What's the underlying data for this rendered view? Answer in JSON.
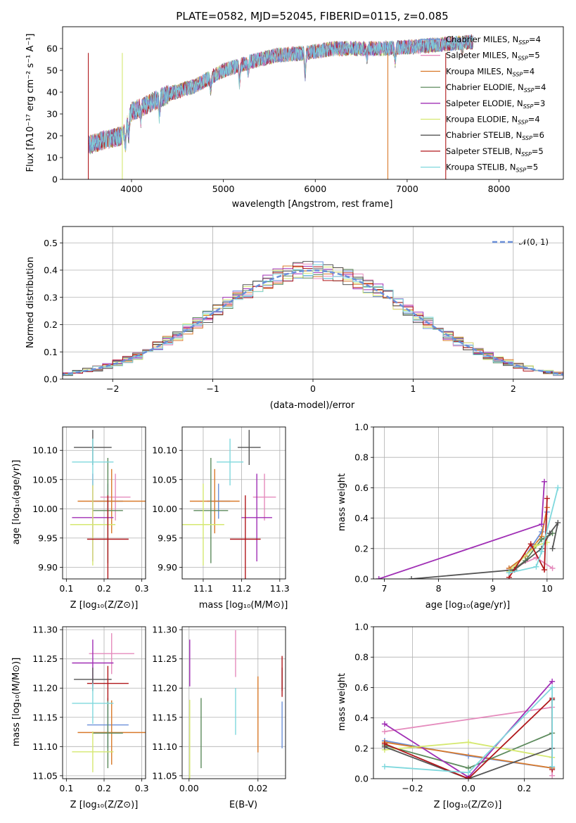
{
  "colors": {
    "series": [
      "#6a8fd9",
      "#e58bbd",
      "#d97a2b",
      "#5c8a5c",
      "#a02fb5",
      "#d5e870",
      "#555555",
      "#b0171b",
      "#7fd8dd"
    ]
  },
  "legend": [
    {
      "name": "Chabrier MILES",
      "nssp": "4"
    },
    {
      "name": "Salpeter MILES",
      "nssp": "5"
    },
    {
      "name": "Kroupa MILES",
      "nssp": "4"
    },
    {
      "name": "Chabrier ELODIE",
      "nssp": "4"
    },
    {
      "name": "Salpeter ELODIE",
      "nssp": "3"
    },
    {
      "name": "Kroupa ELODIE",
      "nssp": "4"
    },
    {
      "name": "Chabrier STELIB",
      "nssp": "6"
    },
    {
      "name": "Salpeter STELIB",
      "nssp": "5"
    },
    {
      "name": "Kroupa STELIB",
      "nssp": "5"
    }
  ],
  "chart_data": [
    {
      "type": "line",
      "id": "spectrum",
      "title": "PLATE=0582, MJD=52045, FIBERID=0115, z=0.085",
      "xlabel": "wavelength [Angstrom, rest frame]",
      "ylabel": "Flux [fλ10⁻¹⁷ erg cm⁻² s⁻¹ A⁻¹]",
      "xlim": [
        3250,
        8700
      ],
      "ylim": [
        0,
        70
      ],
      "xticks": [
        4000,
        5000,
        6000,
        7000,
        8000
      ],
      "yticks": [
        0,
        10,
        20,
        30,
        40,
        50,
        60
      ],
      "continuum": [
        [
          3550,
          16
        ],
        [
          3700,
          18
        ],
        [
          3900,
          20
        ],
        [
          4000,
          31
        ],
        [
          4200,
          35
        ],
        [
          4400,
          39
        ],
        [
          4700,
          43
        ],
        [
          5000,
          50
        ],
        [
          5300,
          54
        ],
        [
          5600,
          57
        ],
        [
          5900,
          58
        ],
        [
          6200,
          60
        ],
        [
          6500,
          60
        ],
        [
          6800,
          60
        ],
        [
          7100,
          61
        ],
        [
          7400,
          62
        ],
        [
          7700,
          63
        ]
      ],
      "absorption_features": [
        [
          3934,
          -8
        ],
        [
          3969,
          -7
        ],
        [
          4102,
          -5
        ],
        [
          4304,
          -8
        ],
        [
          4861,
          -5
        ],
        [
          5175,
          -8
        ],
        [
          5270,
          -4
        ],
        [
          5890,
          -10
        ],
        [
          6563,
          -4
        ],
        [
          6870,
          -6
        ],
        [
          7600,
          -4
        ]
      ],
      "cut_lines": [
        {
          "series": 7,
          "x": 3530
        },
        {
          "series": 5,
          "x": 3900
        },
        {
          "series": 2,
          "x": 6790
        },
        {
          "series": 7,
          "x": 7420
        }
      ],
      "series": [
        "Chabrier MILES",
        "Salpeter MILES",
        "Kroupa MILES",
        "Chabrier ELODIE",
        "Salpeter ELODIE",
        "Kroupa ELODIE",
        "Chabrier STELIB",
        "Salpeter STELIB",
        "Kroupa STELIB"
      ]
    },
    {
      "type": "line",
      "id": "residuals",
      "xlabel": "(data-model)/error",
      "ylabel": "Normed distribution",
      "xlim": [
        -2.5,
        2.5
      ],
      "ylim": [
        0,
        0.56
      ],
      "xticks": [
        -2,
        -1,
        0,
        1,
        2
      ],
      "xtick_labels": [
        "−2",
        "−1",
        "0",
        "1",
        "2"
      ],
      "yticks": [
        0.0,
        0.1,
        0.2,
        0.3,
        0.4,
        0.5
      ],
      "ytick_labels": [
        "0.0",
        "0.1",
        "0.2",
        "0.3",
        "0.4",
        "0.5"
      ],
      "bin_width": 0.1,
      "reference_curve": "𝒩(0, 1)",
      "series_histograms": "step histograms of (data-model)/error per model, scattered around a normal curve"
    },
    {
      "type": "scatter",
      "id": "age-vs-Z",
      "xlabel": "Z [log₁₀(Z/Z⊙)]",
      "ylabel": "age  [log₁₀(age/yr)]",
      "xlim": [
        0.09,
        0.31
      ],
      "ylim": [
        9.88,
        10.14
      ],
      "xticks": [
        0.1,
        0.2,
        0.3
      ],
      "xtick_labels": [
        "0.1",
        "0.2",
        "0.3"
      ],
      "yticks": [
        9.9,
        9.95,
        10.0,
        10.05,
        10.1
      ],
      "ytick_labels": [
        "9.90",
        "9.95",
        "10.00",
        "10.05",
        "10.10"
      ],
      "points": [
        {
          "series": 0,
          "x": 0.21,
          "y": 10.013,
          "xerr": 0.04,
          "yerr": 0.03
        },
        {
          "series": 1,
          "x": 0.23,
          "y": 10.02,
          "xerr": 0.04,
          "yerr": 0.04
        },
        {
          "series": 2,
          "x": 0.22,
          "y": 10.013,
          "xerr": 0.09,
          "yerr": 0.055
        },
        {
          "series": 3,
          "x": 0.21,
          "y": 9.997,
          "xerr": 0.04,
          "yerr": 0.09
        },
        {
          "series": 4,
          "x": 0.17,
          "y": 9.985,
          "xerr": 0.055,
          "yerr": 0.075
        },
        {
          "series": 5,
          "x": 0.17,
          "y": 9.973,
          "xerr": 0.06,
          "yerr": 0.07
        },
        {
          "series": 6,
          "x": 0.17,
          "y": 10.105,
          "xerr": 0.05,
          "yerr": 0.03
        },
        {
          "series": 7,
          "x": 0.21,
          "y": 9.948,
          "xerr": 0.055,
          "yerr": 0.075
        },
        {
          "series": 8,
          "x": 0.17,
          "y": 10.08,
          "xerr": 0.055,
          "yerr": 0.04
        }
      ]
    },
    {
      "type": "scatter",
      "id": "age-vs-mass",
      "xlabel": "mass [log₁₀(M/M⊙)]",
      "ylabel": "",
      "xlim": [
        11.045,
        11.315
      ],
      "ylim": [
        9.88,
        10.14
      ],
      "xticks": [
        11.1,
        11.2,
        11.3
      ],
      "xtick_labels": [
        "11.1",
        "11.2",
        "11.3"
      ],
      "yticks": [
        9.9,
        9.95,
        10.0,
        10.05,
        10.1
      ],
      "ytick_labels": [
        "9.90",
        "9.95",
        "10.00",
        "10.05",
        "10.10"
      ],
      "points": [
        {
          "series": 0,
          "x": 11.14,
          "y": 10.013,
          "xerr": 0.03,
          "yerr": 0.03
        },
        {
          "series": 1,
          "x": 11.26,
          "y": 10.02,
          "xerr": 0.03,
          "yerr": 0.04
        },
        {
          "series": 2,
          "x": 11.13,
          "y": 10.013,
          "xerr": 0.065,
          "yerr": 0.055
        },
        {
          "series": 3,
          "x": 11.12,
          "y": 9.997,
          "xerr": 0.045,
          "yerr": 0.09
        },
        {
          "series": 4,
          "x": 11.24,
          "y": 9.985,
          "xerr": 0.04,
          "yerr": 0.075
        },
        {
          "series": 5,
          "x": 11.1,
          "y": 9.973,
          "xerr": 0.055,
          "yerr": 0.07
        },
        {
          "series": 6,
          "x": 11.22,
          "y": 10.105,
          "xerr": 0.03,
          "yerr": 0.03
        },
        {
          "series": 7,
          "x": 11.21,
          "y": 9.948,
          "xerr": 0.04,
          "yerr": 0.075
        },
        {
          "series": 8,
          "x": 11.17,
          "y": 10.08,
          "xerr": 0.035,
          "yerr": 0.04
        }
      ]
    },
    {
      "type": "line",
      "id": "weight-vs-age",
      "xlabel": "age  [log₁₀(age/yr)]",
      "ylabel": "mass weight",
      "xlim": [
        6.8,
        10.3
      ],
      "ylim": [
        0.0,
        1.0
      ],
      "xticks": [
        7,
        8,
        9,
        10
      ],
      "xtick_labels": [
        "7",
        "8",
        "9",
        "10"
      ],
      "yticks": [
        0.0,
        0.2,
        0.4,
        0.6,
        0.8,
        1.0
      ],
      "ytick_labels": [
        "0.0",
        "0.2",
        "0.4",
        "0.6",
        "0.8",
        "1.0"
      ],
      "series": [
        {
          "series": 0,
          "points": [
            [
              9.3,
              0.07
            ],
            [
              9.6,
              0.15
            ],
            [
              9.9,
              0.31
            ],
            [
              10.0,
              0.44
            ]
          ]
        },
        {
          "series": 1,
          "points": [
            [
              9.3,
              0.06
            ],
            [
              9.8,
              0.14
            ],
            [
              10.1,
              0.07
            ]
          ]
        },
        {
          "series": 2,
          "points": [
            [
              9.3,
              0.07
            ],
            [
              9.6,
              0.15
            ],
            [
              9.9,
              0.28
            ],
            [
              10.0,
              0.47
            ]
          ]
        },
        {
          "series": 3,
          "points": [
            [
              9.3,
              0.04
            ],
            [
              9.6,
              0.12
            ],
            [
              9.9,
              0.26
            ],
            [
              10.1,
              0.3
            ]
          ]
        },
        {
          "series": 4,
          "points": [
            [
              6.9,
              0.0
            ],
            [
              9.9,
              0.36
            ],
            [
              9.95,
              0.64
            ]
          ]
        },
        {
          "series": 5,
          "points": [
            [
              9.3,
              0.05
            ],
            [
              9.8,
              0.22
            ],
            [
              10.0,
              0.24
            ]
          ]
        },
        {
          "series": 6,
          "points": [
            [
              7.5,
              0.0
            ],
            [
              9.4,
              0.06
            ],
            [
              9.9,
              0.2
            ],
            [
              10.05,
              0.3
            ],
            [
              10.2,
              0.37
            ],
            [
              10.1,
              0.2
            ]
          ]
        },
        {
          "series": 7,
          "points": [
            [
              9.3,
              0.01
            ],
            [
              9.7,
              0.23
            ],
            [
              9.95,
              0.06
            ],
            [
              10.0,
              0.53
            ]
          ]
        },
        {
          "series": 8,
          "points": [
            [
              9.3,
              0.04
            ],
            [
              9.8,
              0.08
            ],
            [
              9.9,
              0.18
            ],
            [
              10.2,
              0.6
            ]
          ]
        }
      ]
    },
    {
      "type": "scatter",
      "id": "mass-vs-Z",
      "xlabel": "Z [log₁₀(Z/Z⊙)]",
      "ylabel": "mass [log₁₀(M/M⊙)]",
      "xlim": [
        0.09,
        0.31
      ],
      "ylim": [
        11.045,
        11.305
      ],
      "xticks": [
        0.1,
        0.2,
        0.3
      ],
      "xtick_labels": [
        "0.1",
        "0.2",
        "0.3"
      ],
      "yticks": [
        11.05,
        11.1,
        11.15,
        11.2,
        11.25,
        11.3
      ],
      "ytick_labels": [
        "11.05",
        "11.10",
        "11.15",
        "11.20",
        "11.25",
        "11.30"
      ],
      "points": [
        {
          "series": 0,
          "x": 0.21,
          "y": 11.137,
          "xerr": 0.055,
          "yerr": 0.04
        },
        {
          "series": 1,
          "x": 0.22,
          "y": 11.259,
          "xerr": 0.06,
          "yerr": 0.035
        },
        {
          "series": 2,
          "x": 0.22,
          "y": 11.124,
          "xerr": 0.09,
          "yerr": 0.055
        },
        {
          "series": 3,
          "x": 0.21,
          "y": 11.123,
          "xerr": 0.04,
          "yerr": 0.06
        },
        {
          "series": 4,
          "x": 0.17,
          "y": 11.243,
          "xerr": 0.055,
          "yerr": 0.04
        },
        {
          "series": 5,
          "x": 0.17,
          "y": 11.091,
          "xerr": 0.055,
          "yerr": 0.035
        },
        {
          "series": 6,
          "x": 0.17,
          "y": 11.215,
          "xerr": 0.05,
          "yerr": 0.02
        },
        {
          "series": 7,
          "x": 0.21,
          "y": 11.208,
          "xerr": 0.055,
          "yerr": 0.03
        },
        {
          "series": 8,
          "x": 0.17,
          "y": 11.174,
          "xerr": 0.055,
          "yerr": 0.035
        }
      ]
    },
    {
      "type": "scatter",
      "id": "mass-vs-ebv",
      "xlabel": "E(B-V)",
      "ylabel": "",
      "xlim": [
        -0.002,
        0.028
      ],
      "ylim": [
        11.045,
        11.305
      ],
      "xticks": [
        0.0,
        0.02
      ],
      "xtick_labels": [
        "0.00",
        "0.02"
      ],
      "yticks": [
        11.05,
        11.1,
        11.15,
        11.2,
        11.25,
        11.3
      ],
      "ytick_labels": [
        "11.05",
        "11.10",
        "11.15",
        "11.20",
        "11.25",
        "11.30"
      ],
      "points": [
        {
          "series": 0,
          "x": 0.027,
          "y": 11.137,
          "yerr": 0.04
        },
        {
          "series": 1,
          "x": 0.0135,
          "y": 11.259,
          "yerr": 0.04
        },
        {
          "series": 2,
          "x": 0.02,
          "y": 11.155,
          "yerr": 0.065
        },
        {
          "series": 3,
          "x": 0.0035,
          "y": 11.123,
          "yerr": 0.06
        },
        {
          "series": 4,
          "x": 0.0002,
          "y": 11.243,
          "yerr": 0.04
        },
        {
          "series": 5,
          "x": 0.0002,
          "y": 11.1,
          "yerr": 0.08
        },
        {
          "series": 6,
          "x": 0.027,
          "y": 11.215,
          "yerr": 0.02
        },
        {
          "series": 7,
          "x": 0.027,
          "y": 11.22,
          "yerr": 0.035
        },
        {
          "series": 8,
          "x": 0.0135,
          "y": 11.16,
          "yerr": 0.04
        }
      ]
    },
    {
      "type": "line",
      "id": "weight-vs-Z",
      "xlabel": "Z [log₁₀(Z/Z⊙)]",
      "ylabel": "mass weight",
      "xlim": [
        -0.34,
        0.34
      ],
      "ylim": [
        0.0,
        1.0
      ],
      "xticks": [
        -0.2,
        0.0,
        0.2
      ],
      "xtick_labels": [
        "−0.2",
        "0.0",
        "0.2"
      ],
      "yticks": [
        0.0,
        0.2,
        0.4,
        0.6,
        0.8,
        1.0
      ],
      "ytick_labels": [
        "0.0",
        "0.2",
        "0.4",
        "0.6",
        "0.8",
        "1.0"
      ],
      "series": [
        {
          "series": 0,
          "points": [
            [
              -0.3,
              0.25
            ],
            [
              0.0,
              0.15
            ],
            [
              0.3,
              0.07
            ]
          ]
        },
        {
          "series": 1,
          "points": [
            [
              -0.3,
              0.31
            ],
            [
              0.3,
              0.47
            ],
            [
              0.3,
              0.02
            ]
          ]
        },
        {
          "series": 2,
          "points": [
            [
              -0.3,
              0.24
            ],
            [
              0.3,
              0.07
            ]
          ]
        },
        {
          "series": 3,
          "points": [
            [
              -0.3,
              0.22
            ],
            [
              0.0,
              0.07
            ],
            [
              0.3,
              0.3
            ]
          ]
        },
        {
          "series": 4,
          "points": [
            [
              -0.3,
              0.36
            ],
            [
              0.0,
              0.01
            ],
            [
              0.3,
              0.64
            ]
          ]
        },
        {
          "series": 5,
          "points": [
            [
              -0.3,
              0.19
            ],
            [
              0.0,
              0.24
            ],
            [
              0.3,
              0.14
            ]
          ]
        },
        {
          "series": 6,
          "points": [
            [
              -0.3,
              0.21
            ],
            [
              0.0,
              0.0
            ],
            [
              0.3,
              0.2
            ],
            [
              0.3,
              0.52
            ]
          ]
        },
        {
          "series": 7,
          "points": [
            [
              -0.3,
              0.23
            ],
            [
              0.0,
              0.0
            ],
            [
              0.3,
              0.53
            ],
            [
              0.3,
              0.06
            ]
          ]
        },
        {
          "series": 8,
          "points": [
            [
              -0.3,
              0.08
            ],
            [
              0.0,
              0.04
            ],
            [
              0.3,
              0.6
            ],
            [
              0.3,
              0.08
            ]
          ]
        }
      ]
    }
  ]
}
